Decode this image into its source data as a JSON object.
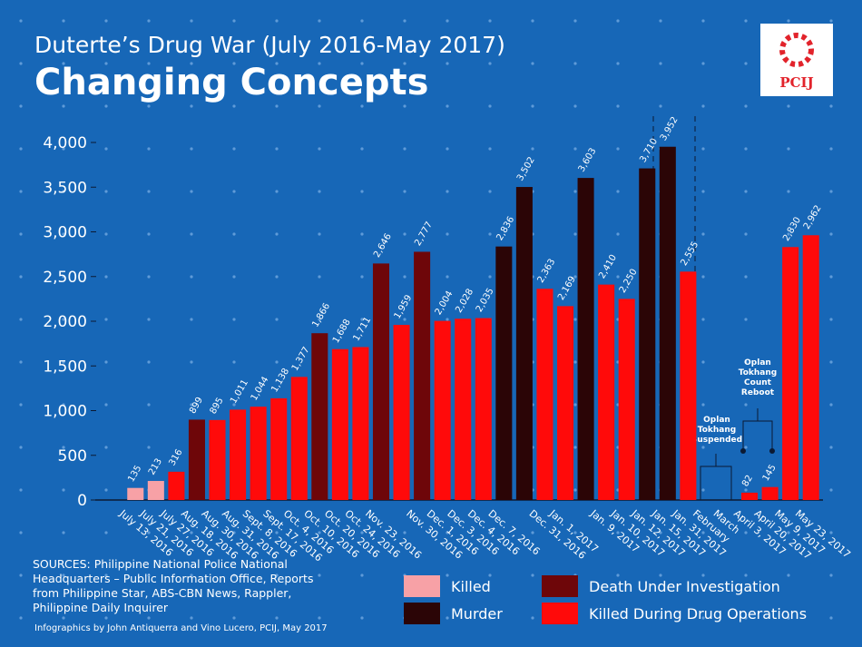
{
  "chart_data": {
    "type": "bar",
    "title": "Duterte’s Drug War (July 2016-May 2017)",
    "subtitle": "Changing Concepts",
    "logo": "PCIJ",
    "sources": "SOURCES: Philippine National Police National Headquarters – Public Information Office, Reports from Philippine Star, ABS-CBN News, Rappler, Philippine Daily Inquirer",
    "credit": "Infographics by John Antiquerra and Vino Lucero, PCIJ, May 2017",
    "annotations": [
      "Oplan Tokhang Suspended",
      "Oplan Tokhang Count Reboot"
    ],
    "categories": [
      "July 13, 2016",
      "July 21, 2016",
      "July 27, 2016",
      "Aug. 18, 2016",
      "Aug. 30, 2016",
      "Aug. 31, 2016",
      "Sept. 8, 2016",
      "Sept. 17, 2016",
      "Oct. 4, 2016",
      "Oct. 10, 2016",
      "Oct. 20, 2016",
      "Oct. 24, 2016",
      "Nov. 23, 2016",
      null,
      "Nov. 30, 2016",
      "Dec. 1, 2016",
      "Dec. 3, 2016",
      "Dec. 4, 2016",
      "Dec. 7, 2016",
      null,
      "Dec. 31, 2016",
      "Jan. 1, 2017",
      null,
      "Jan. 9, 2017",
      "Jan. 10, 2017",
      "Jan. 12, 2017",
      "Jan. 15, 2017",
      "Jan. 31, 2017",
      "February",
      "March",
      "April 3, 2017",
      "April 20, 2017",
      "May 9, 2017",
      "May 23, 2017"
    ],
    "series": [
      {
        "name": "Killed",
        "color": "#f7a1a6",
        "values": [
          135,
          213,
          null,
          null,
          null,
          null,
          null,
          null,
          null,
          null,
          null,
          null,
          null,
          null,
          null,
          null,
          null,
          null,
          null,
          null,
          null,
          null,
          null,
          null,
          null,
          null,
          null,
          null,
          null,
          null,
          null,
          null,
          null,
          null
        ],
        "value_labels": [
          "135",
          "213",
          null,
          null,
          null,
          null,
          null,
          null,
          null,
          null,
          null,
          null,
          null,
          null,
          null,
          null,
          null,
          null,
          null,
          null,
          null,
          null,
          null,
          null,
          null,
          null,
          null,
          null,
          null,
          null,
          null,
          null,
          null,
          null
        ]
      },
      {
        "name": "Murder",
        "color": "#2b0506",
        "values": [
          null,
          null,
          null,
          null,
          null,
          null,
          null,
          null,
          null,
          null,
          null,
          null,
          null,
          null,
          null,
          null,
          null,
          null,
          2836,
          3502,
          null,
          null,
          3603,
          null,
          null,
          3710,
          3952,
          null,
          null,
          null,
          null,
          null,
          null,
          null
        ],
        "value_labels": [
          null,
          null,
          null,
          null,
          null,
          null,
          null,
          null,
          null,
          null,
          null,
          null,
          null,
          null,
          null,
          null,
          null,
          null,
          "2,836",
          "3,502",
          null,
          null,
          "3,603",
          null,
          null,
          "3,710",
          "3,952",
          null,
          null,
          null,
          null,
          null,
          null,
          null
        ]
      },
      {
        "name": "Death Under Investigation",
        "color": "#6e0609",
        "values": [
          null,
          null,
          null,
          899,
          null,
          null,
          null,
          null,
          null,
          1866,
          null,
          null,
          2646,
          null,
          2777,
          null,
          null,
          null,
          null,
          null,
          null,
          null,
          null,
          null,
          null,
          null,
          null,
          null,
          null,
          null,
          null,
          null,
          null,
          null
        ],
        "value_labels": [
          null,
          null,
          null,
          "899",
          null,
          null,
          null,
          null,
          null,
          "1,866",
          null,
          null,
          "2,646",
          null,
          "2,777",
          null,
          null,
          null,
          null,
          null,
          null,
          null,
          null,
          null,
          null,
          null,
          null,
          null,
          null,
          null,
          null,
          null,
          null,
          null
        ]
      },
      {
        "name": "Killed During Drug Operations",
        "color": "#ff0a0a",
        "values": [
          null,
          null,
          316,
          null,
          895,
          1011,
          1044,
          1138,
          1377,
          null,
          1688,
          1711,
          null,
          1959,
          null,
          2004,
          2028,
          2035,
          null,
          null,
          2363,
          2169,
          null,
          2410,
          2250,
          null,
          null,
          2555,
          null,
          null,
          82,
          145,
          2830,
          2962
        ],
        "value_labels": [
          null,
          null,
          "316",
          null,
          "895",
          "1,011",
          "1,044",
          "1,138",
          "1,377",
          null,
          "1,688",
          "1,711",
          null,
          "1,959",
          null,
          "2,004",
          "2,028",
          "2,035",
          null,
          null,
          "2,363",
          "2,169",
          null,
          "2,410",
          "2,250",
          null,
          null,
          "2,555",
          null,
          null,
          "82",
          "145",
          "2,830",
          "2,962"
        ]
      }
    ],
    "ylim": [
      0,
      4000
    ],
    "yticks": [
      0,
      500,
      {
        "value": 1000,
        "label": "1,000"
      },
      {
        "value": 1500,
        "label": "1,500"
      },
      {
        "value": 2000,
        "label": "2,000"
      },
      {
        "value": 2500,
        "label": "2,500"
      },
      {
        "value": 3000,
        "label": "3,000"
      },
      {
        "value": 3500,
        "label": "3,500"
      },
      {
        "value": 4000,
        "label": "4,000"
      }
    ]
  }
}
